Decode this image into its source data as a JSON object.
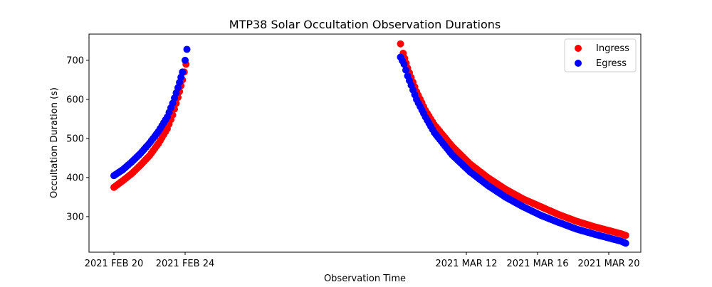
{
  "chart_data": {
    "type": "scatter",
    "title": "MTP38 Solar Occultation Observation Durations",
    "xlabel": "Observation Time",
    "ylabel": "Occultation Duration (s)",
    "x_unit": "days since 2021 FEB 20",
    "xlim": [
      -1.4,
      29.6
    ],
    "ylim": [
      209,
      767
    ],
    "x_ticks": [
      {
        "value": 0,
        "label": "2021 FEB 20"
      },
      {
        "value": 4,
        "label": "2021 FEB 24"
      },
      {
        "value": 19.8,
        "label": "2021 MAR 12"
      },
      {
        "value": 23.8,
        "label": "2021 MAR 16"
      },
      {
        "value": 27.8,
        "label": "2021 MAR 20"
      }
    ],
    "y_ticks": [
      300,
      400,
      500,
      600,
      700
    ],
    "legend": {
      "position": "top-right",
      "entries": [
        "Ingress",
        "Egress"
      ]
    },
    "series": [
      {
        "name": "Ingress",
        "color": "#ff0000",
        "points": [
          [
            0.0,
            375
          ],
          [
            0.5,
            392
          ],
          [
            1.0,
            410
          ],
          [
            1.5,
            432
          ],
          [
            2.0,
            456
          ],
          [
            2.5,
            487
          ],
          [
            3.0,
            525
          ],
          [
            3.3,
            560
          ],
          [
            3.6,
            605
          ],
          [
            3.85,
            650
          ],
          [
            4.05,
            690
          ],
          [
            16.1,
            742
          ],
          [
            16.25,
            718
          ],
          [
            16.5,
            680
          ],
          [
            17.0,
            620
          ],
          [
            17.5,
            572
          ],
          [
            18.0,
            535
          ],
          [
            19.0,
            480
          ],
          [
            20.0,
            435
          ],
          [
            21.0,
            400
          ],
          [
            22.0,
            370
          ],
          [
            23.0,
            345
          ],
          [
            24.0,
            325
          ],
          [
            25.0,
            305
          ],
          [
            26.0,
            288
          ],
          [
            27.0,
            274
          ],
          [
            28.0,
            262
          ],
          [
            28.5,
            256
          ],
          [
            28.75,
            252
          ]
        ]
      },
      {
        "name": "Egress",
        "color": "#0000ff",
        "points": [
          [
            0.0,
            405
          ],
          [
            0.5,
            420
          ],
          [
            1.0,
            440
          ],
          [
            1.5,
            462
          ],
          [
            2.0,
            488
          ],
          [
            2.5,
            518
          ],
          [
            3.0,
            555
          ],
          [
            3.3,
            590
          ],
          [
            3.6,
            630
          ],
          [
            3.85,
            670
          ],
          [
            4.0,
            700
          ],
          [
            4.1,
            728
          ],
          [
            16.1,
            708
          ],
          [
            16.3,
            690
          ],
          [
            16.5,
            660
          ],
          [
            17.0,
            600
          ],
          [
            17.5,
            555
          ],
          [
            18.0,
            515
          ],
          [
            19.0,
            458
          ],
          [
            20.0,
            415
          ],
          [
            21.0,
            380
          ],
          [
            22.0,
            350
          ],
          [
            23.0,
            325
          ],
          [
            24.0,
            303
          ],
          [
            25.0,
            285
          ],
          [
            26.0,
            268
          ],
          [
            27.0,
            255
          ],
          [
            28.0,
            243
          ],
          [
            28.5,
            237
          ],
          [
            28.75,
            232
          ]
        ]
      }
    ]
  }
}
